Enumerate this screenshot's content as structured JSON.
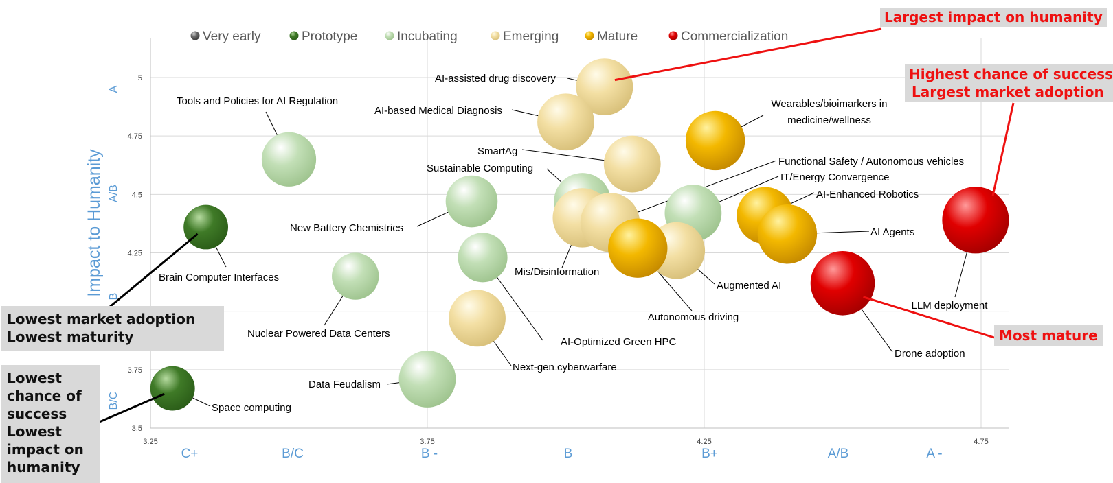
{
  "chart_data": {
    "type": "bubble",
    "x_ticks": [
      "3.25",
      "3.75",
      "4.25",
      "4.75"
    ],
    "y_ticks": [
      "3.5",
      "3.75",
      "4",
      "4.25",
      "4.5",
      "4.75",
      "5"
    ],
    "xlim": [
      3.25,
      4.8
    ],
    "ylim": [
      3.5,
      5.15
    ],
    "ylabel": "Impact to Humanity",
    "x_grades": [
      "C+",
      "B/C",
      "B -",
      "B",
      "B+",
      "A/B",
      "A -"
    ],
    "y_grades": [
      "B/C",
      "B",
      "A/B",
      "A"
    ],
    "legend": {
      "placement": "top",
      "items": [
        {
          "key": "very_early",
          "label": "Very early",
          "color": "#6e6e6e"
        },
        {
          "key": "prototype",
          "label": "Prototype",
          "color": "#3f7a27"
        },
        {
          "key": "incubating",
          "label": "Incubating",
          "color": "#c2dfb6"
        },
        {
          "key": "emerging",
          "label": "Emerging",
          "color": "#f3dfa3"
        },
        {
          "key": "mature",
          "label": "Mature",
          "color": "#f3b800"
        },
        {
          "key": "commercialization",
          "label": "Commercialization",
          "color": "#e00000"
        }
      ]
    },
    "points": [
      {
        "label": "Space computing",
        "x": 3.29,
        "y": 3.67,
        "stage": "prototype",
        "size": 0.9
      },
      {
        "label": "Brain Computer Interfaces",
        "x": 3.35,
        "y": 4.36,
        "stage": "prototype",
        "size": 0.9
      },
      {
        "label": "Tools and Policies for AI Regulation",
        "x": 3.5,
        "y": 4.65,
        "stage": "incubating",
        "size": 1.1
      },
      {
        "label": "Nuclear Powered Data Centers",
        "x": 3.62,
        "y": 4.15,
        "stage": "incubating",
        "size": 0.95
      },
      {
        "label": "Data Feudalism",
        "x": 3.75,
        "y": 3.71,
        "stage": "incubating",
        "size": 1.15
      },
      {
        "label": "New Battery Chemistries",
        "x": 3.83,
        "y": 4.47,
        "stage": "incubating",
        "size": 1.05
      },
      {
        "label": "AI-Optimized Green HPC",
        "x": 3.85,
        "y": 4.23,
        "stage": "incubating",
        "size": 1.0
      },
      {
        "label": "Next-gen cyberwarfare",
        "x": 3.84,
        "y": 3.97,
        "stage": "emerging",
        "size": 1.15
      },
      {
        "label": "AI-assisted drug discovery",
        "x": 4.07,
        "y": 4.96,
        "stage": "emerging",
        "size": 1.15
      },
      {
        "label": "AI-based Medical Diagnosis",
        "x": 4.0,
        "y": 4.81,
        "stage": "emerging",
        "size": 1.15
      },
      {
        "label": "SmartAg",
        "x": 4.12,
        "y": 4.63,
        "stage": "emerging",
        "size": 1.15
      },
      {
        "label": "Sustainable Computing",
        "x": 4.03,
        "y": 4.47,
        "stage": "incubating",
        "size": 1.15
      },
      {
        "label": "Mis/Disinformation",
        "x": 4.03,
        "y": 4.4,
        "stage": "emerging",
        "size": 1.2
      },
      {
        "label": "Functional Safety / Autonomous vehicles",
        "x": 4.08,
        "y": 4.38,
        "stage": "emerging",
        "size": 1.2
      },
      {
        "label": "IT/Energy Convergence",
        "x": 4.23,
        "y": 4.42,
        "stage": "incubating",
        "size": 1.15
      },
      {
        "label": "Augmented AI",
        "x": 4.2,
        "y": 4.26,
        "stage": "emerging",
        "size": 1.15
      },
      {
        "label": "Autonomous driving",
        "x": 4.13,
        "y": 4.27,
        "stage": "mature",
        "size": 1.2
      },
      {
        "label": "Wearables/bioimarkers in medicine/wellness",
        "x": 4.27,
        "y": 4.73,
        "stage": "mature",
        "size": 1.2
      },
      {
        "label": "AI-Enhanced Robotics",
        "x": 4.36,
        "y": 4.41,
        "stage": "mature",
        "size": 1.15
      },
      {
        "label": "AI Agents",
        "x": 4.4,
        "y": 4.33,
        "stage": "mature",
        "size": 1.2
      },
      {
        "label": "Drone adoption",
        "x": 4.5,
        "y": 4.12,
        "stage": "commercialization",
        "size": 1.3
      },
      {
        "label": "LLM deployment",
        "x": 4.74,
        "y": 4.39,
        "stage": "commercialization",
        "size": 1.35
      }
    ]
  },
  "annotations": {
    "largest_impact": "Largest impact on humanity",
    "highest_chance_1": "Highest chance of success",
    "highest_chance_2": "Largest market adoption",
    "most_mature": "Most mature",
    "lowest_adoption_1": "Lowest market adoption",
    "lowest_adoption_2": "Lowest maturity",
    "lowest_chance_1": "Lowest",
    "lowest_chance_2": "chance of",
    "lowest_chance_3": "success",
    "lowest_chance_4": "Lowest",
    "lowest_chance_5": "impact on",
    "lowest_chance_6": "humanity"
  }
}
